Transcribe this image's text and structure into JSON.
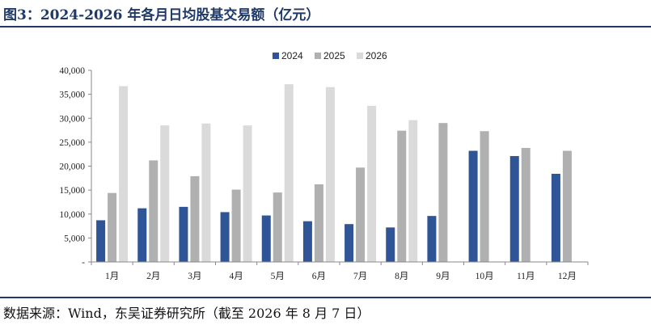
{
  "title": "图3：2024-2026 年各月日均股基交易额（亿元）",
  "source": "数据来源：Wind，东吴证券研究所（截至 2026 年 8 月 7 日）",
  "chart_data": {
    "type": "bar",
    "categories": [
      "1月",
      "2月",
      "3月",
      "4月",
      "5月",
      "6月",
      "7月",
      "8月",
      "9月",
      "10月",
      "11月",
      "12月"
    ],
    "series": [
      {
        "name": "2024",
        "color": "#2f5597",
        "values": [
          8700,
          11200,
          11500,
          10400,
          9700,
          8500,
          7900,
          7200,
          9600,
          23200,
          22100,
          18400
        ]
      },
      {
        "name": "2025",
        "color": "#b0b0b0",
        "values": [
          14400,
          21200,
          17900,
          15100,
          14500,
          16200,
          19700,
          27400,
          29000,
          27300,
          23800,
          23200
        ]
      },
      {
        "name": "2026",
        "color": "#dadada",
        "values": [
          36700,
          28500,
          28900,
          28500,
          37100,
          36500,
          32600,
          29600,
          null,
          null,
          null,
          null
        ]
      }
    ],
    "yticks": [
      "-",
      "5,000",
      "10,000",
      "15,000",
      "20,000",
      "25,000",
      "30,000",
      "35,000",
      "40,000"
    ],
    "ylim": [
      0,
      40000
    ],
    "legend": "top-center",
    "grid": false
  }
}
